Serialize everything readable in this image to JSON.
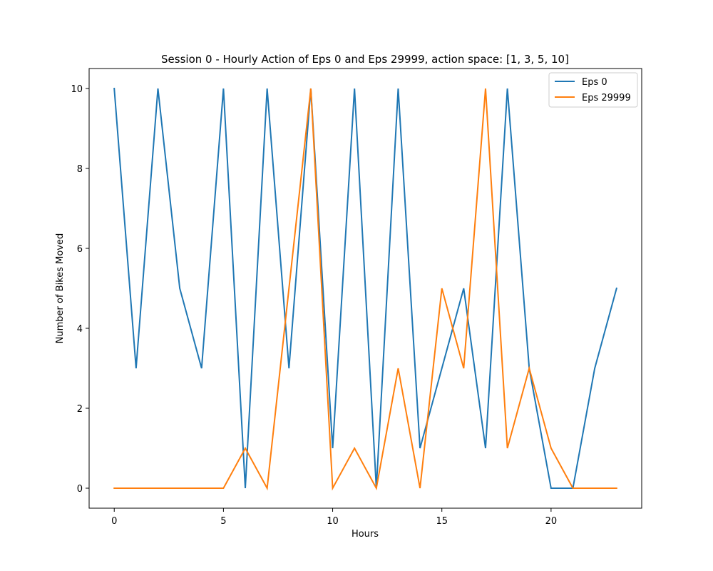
{
  "chart_data": {
    "type": "line",
    "title": "Session 0 - Hourly Action of Eps 0 and Eps 29999, action space: [1, 3, 5, 10]",
    "xlabel": "Hours",
    "ylabel": "Number of Bikes Moved",
    "xlim": [
      -1.15,
      24.15
    ],
    "ylim": [
      -0.5,
      10.5
    ],
    "xticks": [
      0,
      5,
      10,
      15,
      20
    ],
    "yticks": [
      0,
      2,
      4,
      6,
      8,
      10
    ],
    "grid": false,
    "legend_position": "top-right",
    "x": [
      0,
      1,
      2,
      3,
      4,
      5,
      6,
      7,
      8,
      9,
      10,
      11,
      12,
      13,
      14,
      15,
      16,
      17,
      18,
      19,
      20,
      21,
      22,
      23
    ],
    "series": [
      {
        "name": "Eps 0",
        "color": "#1f77b4",
        "values": [
          10,
          3,
          10,
          5,
          3,
          10,
          0,
          10,
          3,
          10,
          1,
          10,
          0,
          10,
          1,
          3,
          5,
          1,
          10,
          3,
          0,
          0,
          3,
          5
        ]
      },
      {
        "name": "Eps 29999",
        "color": "#ff7f0e",
        "values": [
          0,
          0,
          0,
          0,
          0,
          0,
          1,
          0,
          5,
          10,
          0,
          1,
          0,
          3,
          0,
          5,
          3,
          10,
          1,
          3,
          1,
          0,
          0,
          0
        ]
      }
    ]
  }
}
